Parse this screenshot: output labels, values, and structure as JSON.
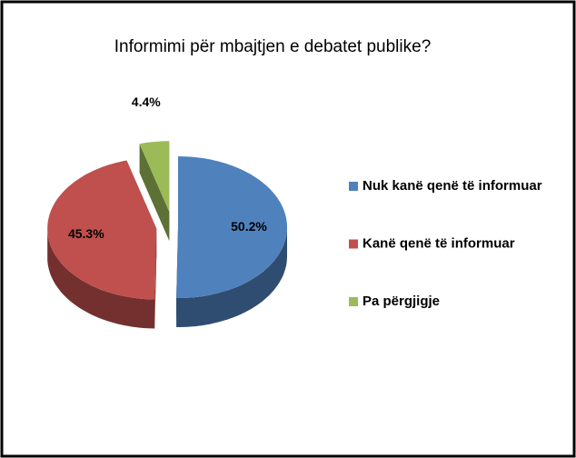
{
  "chart_data": {
    "type": "pie3d",
    "title": "Informimi për mbajtjen e debatet publike?",
    "categories": [
      "Nuk kanë qenë të informuar",
      "Kanë qenë të informuar",
      "Pa përgjigje"
    ],
    "values": [
      50.2,
      45.3,
      4.4
    ],
    "value_labels": [
      "50.2%",
      "45.3%",
      "4.4%"
    ],
    "colors": [
      "#4f81bd",
      "#c0504d",
      "#9bbb59"
    ],
    "legend": "right"
  }
}
